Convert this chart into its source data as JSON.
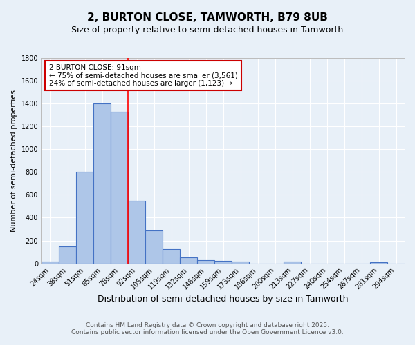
{
  "title1": "2, BURTON CLOSE, TAMWORTH, B79 8UB",
  "title2": "Size of property relative to semi-detached houses in Tamworth",
  "xlabel": "Distribution of semi-detached houses by size in Tamworth",
  "ylabel": "Number of semi-detached properties",
  "categories": [
    "24sqm",
    "38sqm",
    "51sqm",
    "65sqm",
    "78sqm",
    "92sqm",
    "105sqm",
    "119sqm",
    "132sqm",
    "146sqm",
    "159sqm",
    "173sqm",
    "186sqm",
    "200sqm",
    "213sqm",
    "227sqm",
    "240sqm",
    "254sqm",
    "267sqm",
    "281sqm",
    "294sqm"
  ],
  "values": [
    15,
    150,
    800,
    1400,
    1330,
    550,
    290,
    125,
    50,
    25,
    20,
    15,
    0,
    0,
    15,
    0,
    0,
    0,
    0,
    10,
    0
  ],
  "bar_color": "#aec6e8",
  "bar_edge_color": "#4472c4",
  "background_color": "#e8f0f8",
  "grid_color": "#ffffff",
  "red_line_index": 5,
  "annotation_line1": "2 BURTON CLOSE: 91sqm",
  "annotation_line2": "← 75% of semi-detached houses are smaller (3,561)",
  "annotation_line3": "24% of semi-detached houses are larger (1,123) →",
  "annotation_box_color": "#ffffff",
  "annotation_box_edge": "#cc0000",
  "ylim": [
    0,
    1800
  ],
  "yticks": [
    0,
    200,
    400,
    600,
    800,
    1000,
    1200,
    1400,
    1600,
    1800
  ],
  "footnote1": "Contains HM Land Registry data © Crown copyright and database right 2025.",
  "footnote2": "Contains public sector information licensed under the Open Government Licence v3.0.",
  "title1_fontsize": 11,
  "title2_fontsize": 9,
  "xlabel_fontsize": 9,
  "ylabel_fontsize": 8,
  "tick_fontsize": 7,
  "annot_fontsize": 7.5,
  "footnote_fontsize": 6.5
}
